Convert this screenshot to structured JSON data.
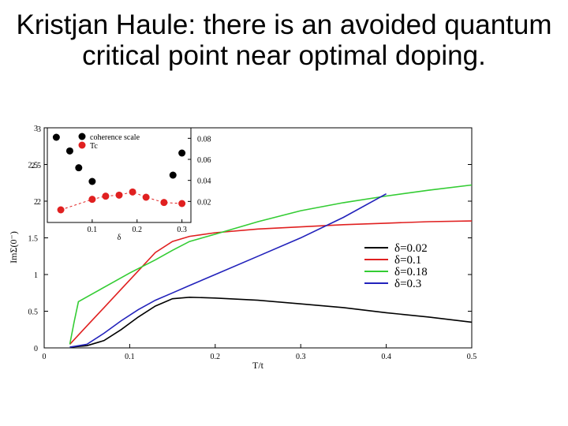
{
  "slide": {
    "title": "Kristjan Haule:  there is an avoided quantum critical point near  optimal doping."
  },
  "chart_data": [
    {
      "type": "line",
      "xlabel": "T/t",
      "ylabel": "ImΣ(0⁻)",
      "xlim": [
        0,
        0.5
      ],
      "ylim": [
        0,
        3
      ],
      "x_ticks": [
        "0",
        "0.1",
        "0.2",
        "0.3",
        "0.4",
        "0.5"
      ],
      "y_ticks": [
        "0",
        "0.5",
        "1",
        "1.5",
        "2",
        "2.5",
        "3"
      ],
      "legend_position": "right",
      "series": [
        {
          "name": "δ=0.02",
          "color": "#000000",
          "x": [
            0.03,
            0.05,
            0.07,
            0.09,
            0.11,
            0.13,
            0.15,
            0.17,
            0.2,
            0.25,
            0.3,
            0.35,
            0.4,
            0.45,
            0.5
          ],
          "y": [
            0.01,
            0.03,
            0.1,
            0.25,
            0.42,
            0.57,
            0.67,
            0.69,
            0.68,
            0.65,
            0.6,
            0.55,
            0.48,
            0.42,
            0.35
          ]
        },
        {
          "name": "δ=0.1",
          "color": "#e02020",
          "x": [
            0.03,
            0.05,
            0.07,
            0.09,
            0.11,
            0.13,
            0.15,
            0.17,
            0.2,
            0.25,
            0.3,
            0.35,
            0.4,
            0.45,
            0.5
          ],
          "y": [
            0.05,
            0.3,
            0.55,
            0.8,
            1.05,
            1.3,
            1.45,
            1.52,
            1.57,
            1.62,
            1.65,
            1.68,
            1.7,
            1.72,
            1.73
          ]
        },
        {
          "name": "δ=0.18",
          "color": "#33cc33",
          "x": [
            0.03,
            0.035,
            0.04,
            0.06,
            0.08,
            0.1,
            0.13,
            0.15,
            0.17,
            0.2,
            0.25,
            0.3,
            0.35,
            0.4,
            0.45,
            0.5
          ],
          "y": [
            0.05,
            0.35,
            0.63,
            0.76,
            0.89,
            1.02,
            1.2,
            1.33,
            1.45,
            1.55,
            1.72,
            1.87,
            1.98,
            2.07,
            2.15,
            2.22
          ]
        },
        {
          "name": "δ=0.3",
          "color": "#2222bb",
          "x": [
            0.03,
            0.05,
            0.07,
            0.09,
            0.11,
            0.13,
            0.15,
            0.17,
            0.2,
            0.25,
            0.3,
            0.35,
            0.4
          ],
          "y": [
            0.01,
            0.05,
            0.2,
            0.37,
            0.52,
            0.65,
            0.75,
            0.85,
            1.0,
            1.25,
            1.5,
            1.78,
            2.1
          ]
        }
      ]
    },
    {
      "type": "scatter",
      "xlabel": "δ",
      "x_ticks": [
        "0.1",
        "0.2",
        "0.3"
      ],
      "y_ticks_left": [
        "2",
        "2.5",
        "3"
      ],
      "y_ticks_right": [
        "0.02",
        "0.04",
        "0.06",
        "0.08"
      ],
      "xlim": [
        0,
        0.32
      ],
      "ylim_right": [
        0,
        0.09
      ],
      "legend_position": "top",
      "series": [
        {
          "name": "coherence scale",
          "color": "#000000",
          "x": [
            0.02,
            0.05,
            0.07,
            0.1,
            0.28,
            0.3
          ],
          "y": [
            0.081,
            0.068,
            0.052,
            0.039,
            0.045,
            0.066
          ]
        },
        {
          "name": "Tc",
          "color": "#e02020",
          "x": [
            0.03,
            0.1,
            0.13,
            0.16,
            0.19,
            0.22,
            0.26,
            0.3
          ],
          "y": [
            0.012,
            0.022,
            0.025,
            0.026,
            0.029,
            0.024,
            0.019,
            0.018
          ]
        }
      ]
    }
  ]
}
